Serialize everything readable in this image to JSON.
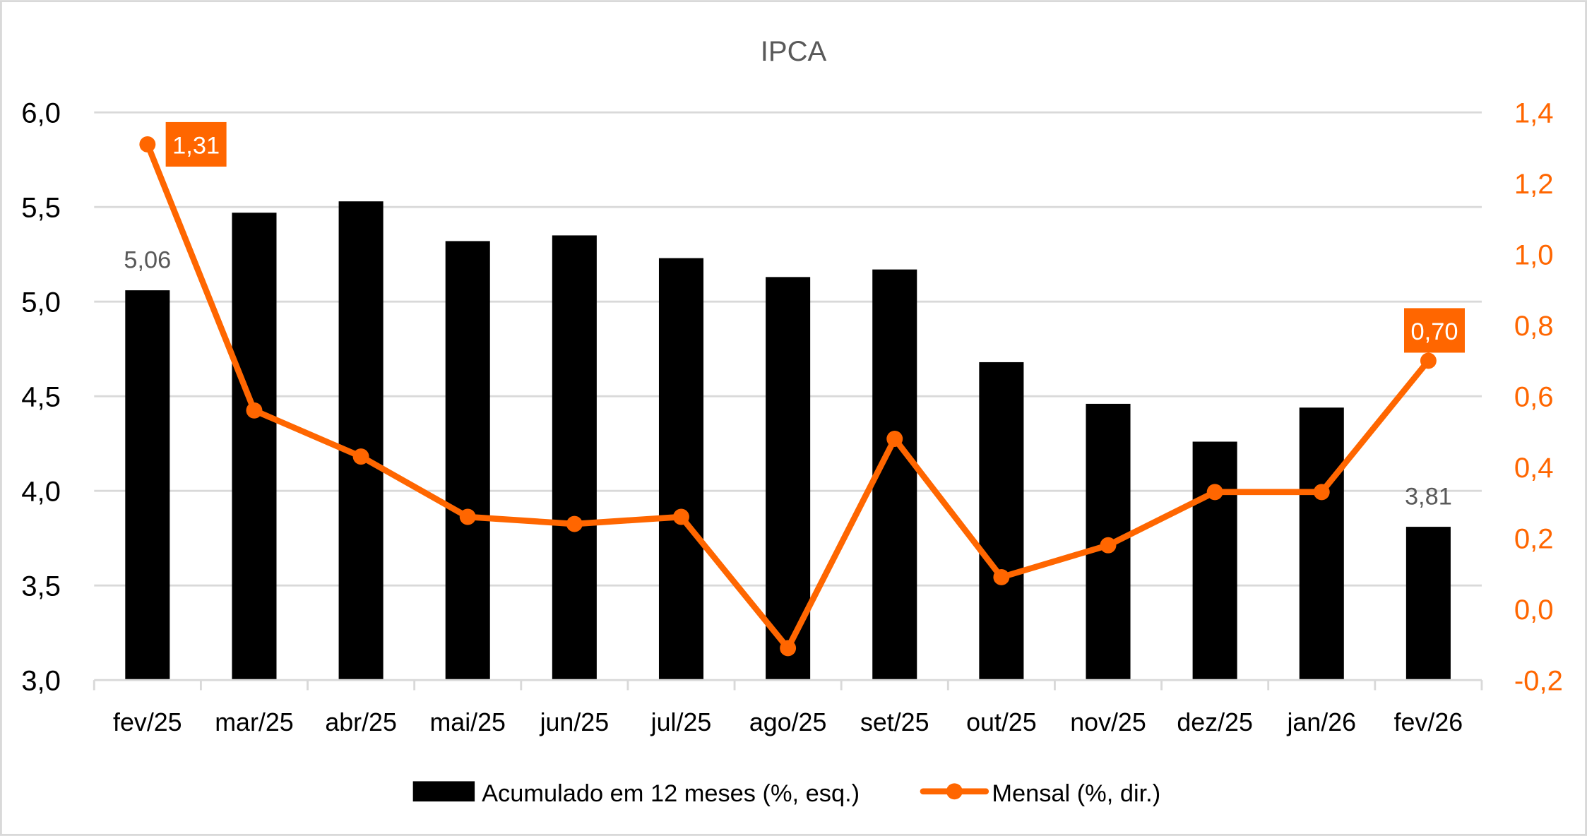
{
  "chart_data": {
    "type": "bar+line",
    "title": "IPCA",
    "categories": [
      "fev/25",
      "mar/25",
      "abr/25",
      "mai/25",
      "jun/25",
      "jul/25",
      "ago/25",
      "set/25",
      "out/25",
      "nov/25",
      "dez/25",
      "jan/26",
      "fev/26"
    ],
    "series": [
      {
        "name": "Acumulado em 12 meses (%, esq.)",
        "type": "bar",
        "axis": "left",
        "color": "#000000",
        "values": [
          5.06,
          5.47,
          5.53,
          5.32,
          5.35,
          5.23,
          5.13,
          5.17,
          4.68,
          4.46,
          4.26,
          4.44,
          3.81
        ]
      },
      {
        "name": "Mensal (%, dir.)",
        "type": "line",
        "axis": "right",
        "color": "#FF6600",
        "values": [
          1.31,
          0.56,
          0.43,
          0.26,
          0.24,
          0.26,
          -0.11,
          0.48,
          0.09,
          0.18,
          0.33,
          0.33,
          0.7
        ]
      }
    ],
    "left_axis": {
      "ylim": [
        3.0,
        6.0
      ],
      "ticks": [
        "3,0",
        "3,5",
        "4,0",
        "4,5",
        "5,0",
        "5,5",
        "6,0"
      ]
    },
    "right_axis": {
      "ylim": [
        -0.2,
        1.4
      ],
      "ticks": [
        "-0,2",
        "0,0",
        "0,2",
        "0,4",
        "0,6",
        "0,8",
        "1,0",
        "1,2",
        "1,4"
      ],
      "color": "#FF6600"
    },
    "data_labels": [
      {
        "series": 0,
        "index": 0,
        "text": "5,06"
      },
      {
        "series": 0,
        "index": 12,
        "text": "3,81"
      },
      {
        "series": 1,
        "index": 0,
        "text": "1,31"
      },
      {
        "series": 1,
        "index": 12,
        "text": "0,70"
      }
    ],
    "grid": true,
    "legend": "bottom"
  }
}
